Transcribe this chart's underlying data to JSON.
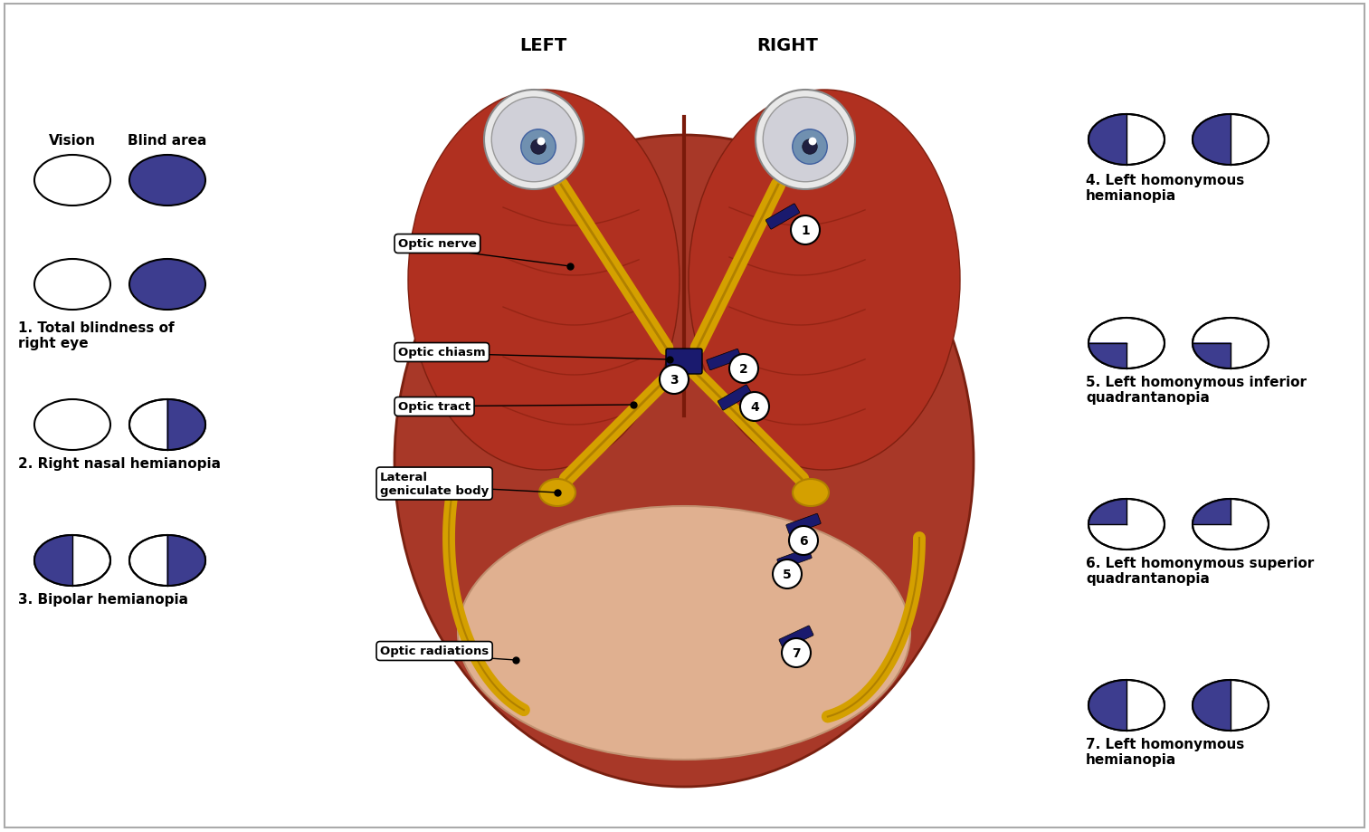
{
  "title_left": "LEFT",
  "title_right": "RIGHT",
  "bg_color": "#ffffff",
  "purple_color": "#3d3d8f",
  "vision_label": "Vision",
  "blind_label": "Blind area",
  "labels_left": [
    "1. Total blindness of\nright eye",
    "2. Right nasal hemianopia",
    "3. Bipolar hemianopia"
  ],
  "labels_right": [
    "4. Left homonymous\nhemianopia",
    "5. Left homonymous inferior\nquadrantanopia",
    "6. Left homonymous superior\nquadrantanopia",
    "7. Left homonymous\nhemianopia"
  ],
  "anatomy_labels": [
    "Optic nerve",
    "Optic chiasm",
    "Optic tract",
    "Lateral\ngeniculate body",
    "Optic radiations"
  ],
  "numbered_positions": [
    1,
    2,
    3,
    4,
    5,
    6,
    7
  ]
}
